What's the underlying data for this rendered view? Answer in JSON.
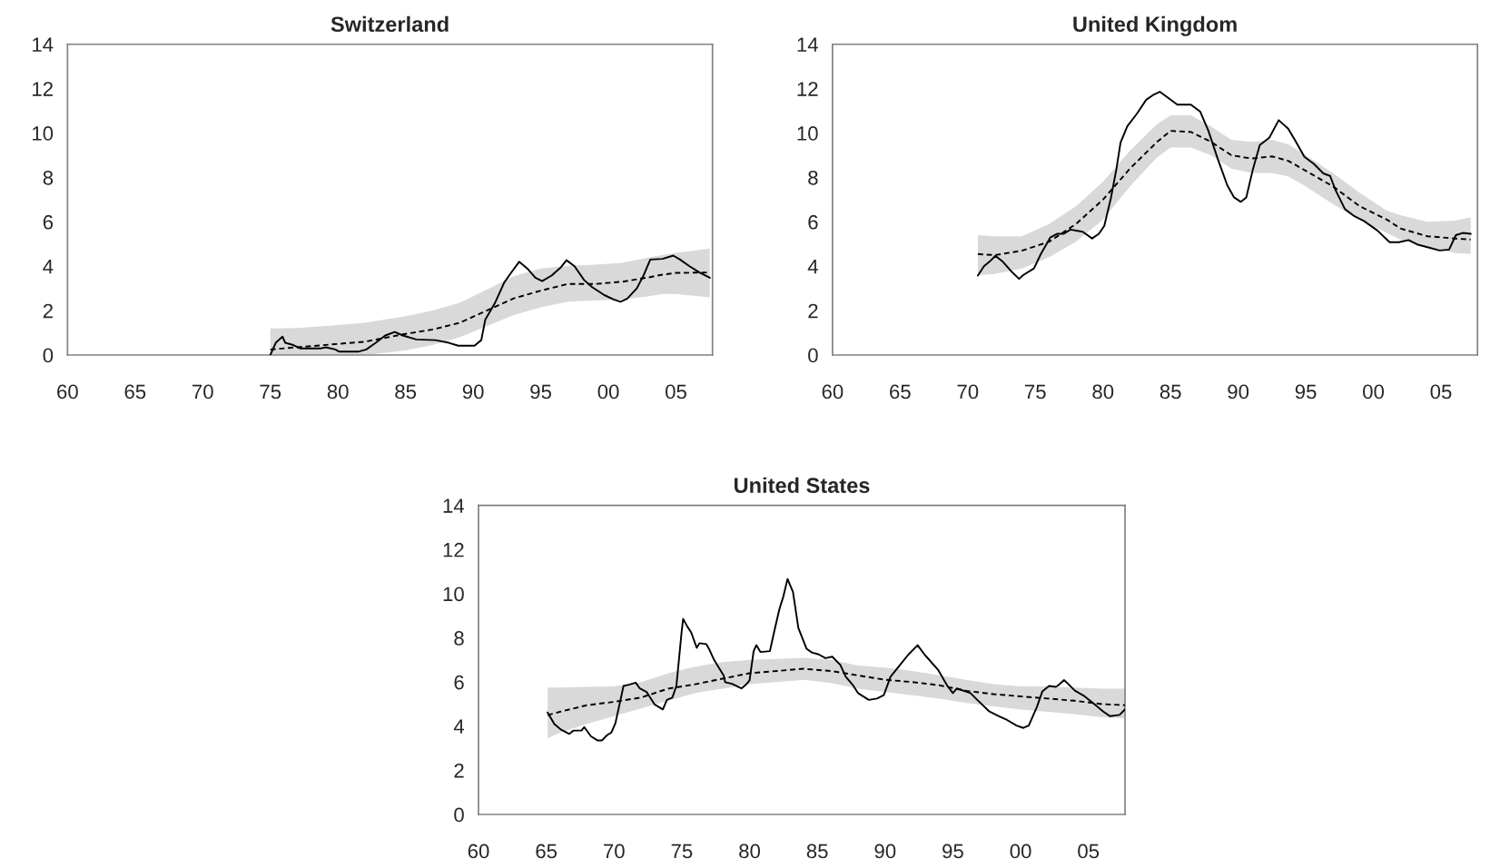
{
  "chart_data": [
    {
      "type": "line",
      "title": "Switzerland",
      "xlim": [
        1960,
        2007.7
      ],
      "ylim": [
        0,
        14
      ],
      "xticks": [
        {
          "value": 1960,
          "label": "60"
        },
        {
          "value": 1965,
          "label": "65"
        },
        {
          "value": 1970,
          "label": "70"
        },
        {
          "value": 1975,
          "label": "75"
        },
        {
          "value": 1980,
          "label": "80"
        },
        {
          "value": 1985,
          "label": "85"
        },
        {
          "value": 1990,
          "label": "90"
        },
        {
          "value": 1995,
          "label": "95"
        },
        {
          "value": 2000,
          "label": "00"
        },
        {
          "value": 2005,
          "label": "05"
        }
      ],
      "yticks": [
        0,
        2,
        4,
        6,
        8,
        10,
        12,
        14
      ],
      "series": [
        {
          "color": "#000000",
          "line_style": "solid",
          "x": [
            1975.0,
            1975.4,
            1975.9,
            1976.1,
            1976.7,
            1977.2,
            1978.75,
            1979.1,
            1979.8,
            1980.1,
            1981.5,
            1982.1,
            1982.8,
            1983.5,
            1984.2,
            1984.8,
            1985.8,
            1987.2,
            1988.2,
            1988.9,
            1990.1,
            1990.6,
            1990.9,
            1991.6,
            1992.3,
            1992.8,
            1993.4,
            1994.0,
            1994.6,
            1995.1,
            1995.8,
            1996.5,
            1996.9,
            1997.5,
            1998.2,
            1998.8,
            1999.7,
            2000.4,
            2000.9,
            2001.4,
            2002.1,
            2002.6,
            2003.1,
            2004.0,
            2004.8,
            2005.3,
            2006.0,
            2006.8,
            2007.5
          ],
          "values": [
            0.0,
            0.55,
            0.83,
            0.55,
            0.45,
            0.3,
            0.3,
            0.35,
            0.25,
            0.15,
            0.15,
            0.25,
            0.55,
            0.88,
            1.04,
            0.88,
            0.7,
            0.67,
            0.55,
            0.42,
            0.42,
            0.67,
            1.6,
            2.33,
            3.27,
            3.7,
            4.2,
            3.9,
            3.48,
            3.33,
            3.58,
            3.96,
            4.27,
            4.0,
            3.38,
            3.06,
            2.7,
            2.5,
            2.4,
            2.54,
            3.0,
            3.58,
            4.3,
            4.33,
            4.48,
            4.3,
            4.0,
            3.7,
            3.48
          ]
        },
        {
          "color": "#000000",
          "line_style": "dashed",
          "x": [
            1975,
            1977,
            1980,
            1982,
            1985,
            1987,
            1989,
            1991,
            1993,
            1995,
            1997,
            1999,
            2001,
            2003,
            2004,
            2005,
            2007.5
          ],
          "values": [
            0.25,
            0.35,
            0.5,
            0.6,
            0.95,
            1.15,
            1.45,
            2.0,
            2.55,
            2.9,
            3.2,
            3.2,
            3.3,
            3.5,
            3.62,
            3.7,
            3.72
          ],
          "lower": [
            0.0,
            0.0,
            0.0,
            0.0,
            0.2,
            0.45,
            0.8,
            1.3,
            1.8,
            2.15,
            2.4,
            2.45,
            2.5,
            2.65,
            2.75,
            2.75,
            2.6
          ],
          "upper": [
            1.2,
            1.22,
            1.35,
            1.45,
            1.75,
            2.0,
            2.35,
            2.95,
            3.55,
            3.9,
            4.02,
            4.07,
            4.15,
            4.4,
            4.5,
            4.6,
            4.8
          ]
        }
      ]
    },
    {
      "type": "line",
      "title": "United Kingdom",
      "xlim": [
        1960,
        2007.7
      ],
      "ylim": [
        0,
        14
      ],
      "xticks": [
        {
          "value": 1960,
          "label": "60"
        },
        {
          "value": 1965,
          "label": "65"
        },
        {
          "value": 1970,
          "label": "70"
        },
        {
          "value": 1975,
          "label": "75"
        },
        {
          "value": 1980,
          "label": "80"
        },
        {
          "value": 1985,
          "label": "85"
        },
        {
          "value": 1990,
          "label": "90"
        },
        {
          "value": 1995,
          "label": "95"
        },
        {
          "value": 2000,
          "label": "00"
        },
        {
          "value": 2005,
          "label": "05"
        }
      ],
      "yticks": [
        0,
        2,
        4,
        6,
        8,
        10,
        12,
        14
      ],
      "series": [
        {
          "color": "#000000",
          "line_style": "solid",
          "x": [
            1970.75,
            1971.2,
            1971.6,
            1972.05,
            1972.6,
            1973.3,
            1973.8,
            1974.1,
            1974.9,
            1975.4,
            1976.1,
            1976.6,
            1977.1,
            1977.6,
            1978.5,
            1979.2,
            1979.7,
            1980.1,
            1980.6,
            1981.0,
            1981.3,
            1981.8,
            1982.5,
            1983.2,
            1983.7,
            1984.2,
            1984.8,
            1985.5,
            1986.5,
            1987.2,
            1987.8,
            1988.5,
            1989.2,
            1989.7,
            1990.2,
            1990.6,
            1991.1,
            1991.6,
            1992.3,
            1993.0,
            1993.7,
            1994.2,
            1994.9,
            1995.6,
            1996.3,
            1996.8,
            1997.2,
            1997.9,
            1998.6,
            1999.3,
            2000.3,
            2001.2,
            2001.9,
            2002.6,
            2003.3,
            2004.0,
            2004.9,
            2005.6,
            2006.1,
            2006.6,
            2007.2
          ],
          "values": [
            3.58,
            4.0,
            4.2,
            4.47,
            4.2,
            3.72,
            3.43,
            3.6,
            3.9,
            4.54,
            5.29,
            5.46,
            5.46,
            5.65,
            5.55,
            5.25,
            5.46,
            5.82,
            7.1,
            8.39,
            9.57,
            10.3,
            10.86,
            11.5,
            11.71,
            11.86,
            11.6,
            11.28,
            11.28,
            10.96,
            10.1,
            8.82,
            7.64,
            7.1,
            6.9,
            7.1,
            8.39,
            9.46,
            9.79,
            10.58,
            10.2,
            9.68,
            8.93,
            8.61,
            8.18,
            8.07,
            7.43,
            6.57,
            6.25,
            6.04,
            5.61,
            5.08,
            5.08,
            5.18,
            4.97,
            4.86,
            4.71,
            4.75,
            5.4,
            5.5,
            5.46
          ]
        },
        {
          "color": "#000000",
          "line_style": "dashed",
          "x": [
            1970.75,
            1972,
            1974,
            1976,
            1978,
            1980,
            1982,
            1984,
            1985,
            1986.5,
            1988,
            1989.5,
            1991,
            1992.5,
            1993.7,
            1995,
            1997,
            1999,
            2001,
            2002,
            2004,
            2006,
            2007.2
          ],
          "values": [
            4.55,
            4.5,
            4.7,
            5.1,
            5.9,
            7.0,
            8.4,
            9.6,
            10.1,
            10.05,
            9.6,
            9.0,
            8.85,
            8.95,
            8.75,
            8.3,
            7.6,
            6.7,
            6.1,
            5.7,
            5.35,
            5.25,
            5.2
          ],
          "lower": [
            3.6,
            3.65,
            3.9,
            4.4,
            5.1,
            6.1,
            7.6,
            8.9,
            9.35,
            9.35,
            9.0,
            8.4,
            8.2,
            8.2,
            8.05,
            7.6,
            6.8,
            6.1,
            5.5,
            5.2,
            4.85,
            4.6,
            4.55
          ],
          "upper": [
            5.4,
            5.35,
            5.35,
            5.9,
            6.7,
            7.8,
            9.2,
            10.4,
            10.8,
            10.8,
            10.3,
            9.7,
            9.6,
            9.7,
            9.5,
            9.0,
            8.2,
            7.3,
            6.5,
            6.3,
            6.0,
            6.05,
            6.2
          ]
        }
      ]
    },
    {
      "type": "line",
      "title": "United States",
      "xlim": [
        1960,
        2007.7
      ],
      "ylim": [
        0,
        14
      ],
      "xticks": [
        {
          "value": 1960,
          "label": "60"
        },
        {
          "value": 1965,
          "label": "65"
        },
        {
          "value": 1970,
          "label": "70"
        },
        {
          "value": 1975,
          "label": "75"
        },
        {
          "value": 1980,
          "label": "80"
        },
        {
          "value": 1985,
          "label": "85"
        },
        {
          "value": 1990,
          "label": "90"
        },
        {
          "value": 1995,
          "label": "95"
        },
        {
          "value": 2000,
          "label": "00"
        },
        {
          "value": 2005,
          "label": "05"
        }
      ],
      "yticks": [
        0,
        2,
        4,
        6,
        8,
        10,
        12,
        14
      ],
      "series": [
        {
          "color": "#000000",
          "line_style": "solid",
          "x": [
            1965.1,
            1965.6,
            1966.1,
            1966.7,
            1967.0,
            1967.6,
            1967.8,
            1968.3,
            1968.8,
            1969.1,
            1969.5,
            1969.8,
            1970.1,
            1970.7,
            1971.1,
            1971.6,
            1971.9,
            1972.4,
            1973.0,
            1973.6,
            1973.9,
            1974.3,
            1974.6,
            1975.0,
            1975.1,
            1975.4,
            1975.7,
            1976.1,
            1976.3,
            1976.8,
            1977.0,
            1977.4,
            1978.1,
            1978.2,
            1978.7,
            1979.4,
            1979.7,
            1980.0,
            1980.3,
            1980.5,
            1980.8,
            1981.5,
            1981.8,
            1982.2,
            1982.5,
            1982.8,
            1983.2,
            1983.6,
            1984.2,
            1984.6,
            1985.1,
            1985.6,
            1986.1,
            1986.7,
            1987.1,
            1987.6,
            1988.0,
            1988.8,
            1989.4,
            1989.9,
            1990.4,
            1991.1,
            1991.7,
            1992.4,
            1992.9,
            1993.9,
            1994.6,
            1995.0,
            1995.3,
            1996.3,
            1996.8,
            1997.7,
            1998.4,
            1999.0,
            1999.7,
            2000.2,
            2000.6,
            2001.2,
            2001.6,
            2002.1,
            2002.6,
            2002.8,
            2003.2,
            2003.5,
            2004.0,
            2004.7,
            2005.4,
            2006.1,
            2006.6,
            2007.3,
            2007.7
          ],
          "values": [
            4.62,
            4.09,
            3.84,
            3.65,
            3.8,
            3.8,
            3.96,
            3.54,
            3.35,
            3.35,
            3.6,
            3.71,
            4.13,
            5.82,
            5.88,
            5.97,
            5.71,
            5.55,
            4.98,
            4.76,
            5.19,
            5.29,
            5.82,
            8.35,
            8.86,
            8.52,
            8.24,
            7.55,
            7.76,
            7.72,
            7.51,
            6.98,
            6.28,
            5.99,
            5.92,
            5.71,
            5.86,
            6.07,
            7.4,
            7.67,
            7.36,
            7.4,
            8.24,
            9.3,
            9.89,
            10.67,
            10.08,
            8.45,
            7.51,
            7.34,
            7.25,
            7.08,
            7.15,
            6.77,
            6.24,
            5.88,
            5.5,
            5.19,
            5.25,
            5.4,
            6.24,
            6.77,
            7.23,
            7.67,
            7.25,
            6.56,
            5.82,
            5.5,
            5.71,
            5.5,
            5.19,
            4.66,
            4.45,
            4.28,
            4.03,
            3.92,
            4.03,
            4.87,
            5.57,
            5.82,
            5.78,
            5.86,
            6.09,
            5.92,
            5.61,
            5.36,
            5.02,
            4.66,
            4.45,
            4.51,
            4.76
          ]
        },
        {
          "color": "#000000",
          "line_style": "dashed",
          "x": [
            1965.1,
            1966,
            1968,
            1970,
            1972,
            1974,
            1976,
            1978,
            1980,
            1982,
            1984,
            1986,
            1988,
            1990,
            1992,
            1994,
            1996,
            1998,
            2000,
            2002,
            2004,
            2006,
            2007.7
          ],
          "values": [
            4.5,
            4.65,
            4.95,
            5.1,
            5.3,
            5.7,
            5.9,
            6.15,
            6.4,
            6.5,
            6.6,
            6.5,
            6.3,
            6.1,
            6.0,
            5.85,
            5.6,
            5.45,
            5.35,
            5.25,
            5.15,
            5.0,
            4.95
          ],
          "lower": [
            3.45,
            3.7,
            4.1,
            4.45,
            4.8,
            5.15,
            5.5,
            5.7,
            5.9,
            6.0,
            6.1,
            5.95,
            5.7,
            5.55,
            5.4,
            5.25,
            5.05,
            4.9,
            4.75,
            4.65,
            4.55,
            4.4,
            4.35
          ],
          "upper": [
            5.75,
            5.75,
            5.78,
            5.8,
            6.0,
            6.4,
            6.7,
            6.9,
            7.0,
            7.05,
            7.1,
            7.0,
            6.75,
            6.65,
            6.5,
            6.3,
            6.1,
            5.9,
            5.8,
            5.8,
            5.75,
            5.7,
            5.7
          ]
        }
      ]
    }
  ]
}
